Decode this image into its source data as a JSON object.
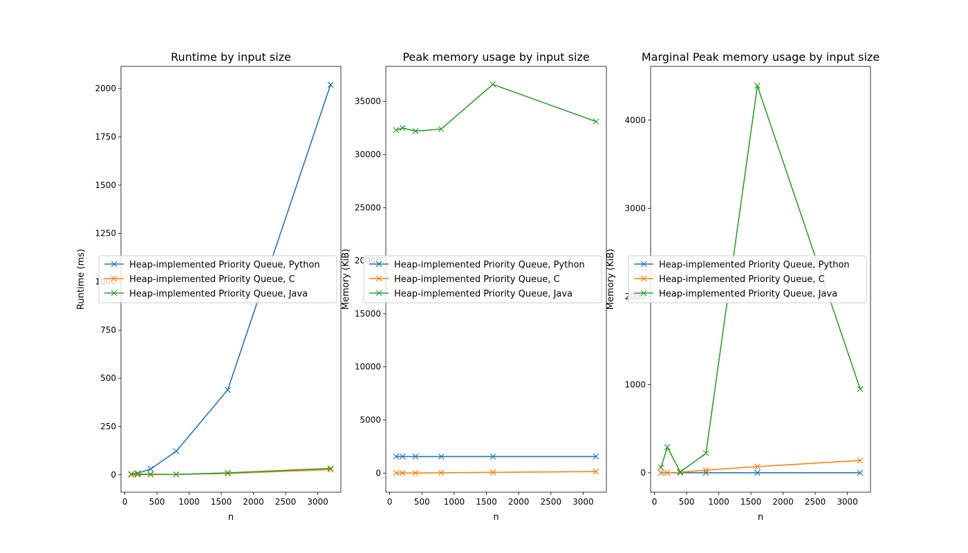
{
  "chart_data": [
    {
      "type": "line",
      "title": "Runtime by input size",
      "xlabel": "n",
      "ylabel": "Runtime (ms)",
      "xlim": [
        -60,
        3360
      ],
      "ylim": [
        -90,
        2115
      ],
      "xticks": [
        0,
        500,
        1000,
        1500,
        2000,
        2500,
        3000
      ],
      "yticks": [
        0,
        250,
        500,
        750,
        1000,
        1250,
        1500,
        1750,
        2000
      ],
      "x": [
        100,
        200,
        400,
        800,
        1600,
        3200
      ],
      "legend": "center-left",
      "grid": false,
      "series": [
        {
          "name": "Heap-implemented Priority Queue, Python",
          "color": "#1f77b4",
          "values": [
            2,
            8,
            30,
            122,
            440,
            2020
          ]
        },
        {
          "name": "Heap-implemented Priority Queue, C",
          "color": "#ff7f0e",
          "values": [
            0.3,
            0.5,
            1,
            2,
            7,
            27
          ]
        },
        {
          "name": "Heap-implemented Priority Queue, Java",
          "color": "#2ca02c",
          "values": [
            4,
            5,
            3,
            2,
            10,
            33
          ]
        }
      ]
    },
    {
      "type": "line",
      "title": "Peak memory usage by input size",
      "xlabel": "n",
      "ylabel": "Memory (KiB)",
      "xlim": [
        -60,
        3360
      ],
      "ylim": [
        -1800,
        38300
      ],
      "xticks": [
        0,
        500,
        1000,
        1500,
        2000,
        2500,
        3000
      ],
      "yticks": [
        0,
        5000,
        10000,
        15000,
        20000,
        25000,
        30000,
        35000
      ],
      "x": [
        100,
        200,
        400,
        800,
        1600,
        3200
      ],
      "legend": "center-left",
      "grid": false,
      "series": [
        {
          "name": "Heap-implemented Priority Queue, Python",
          "color": "#1f77b4",
          "values": [
            1560,
            1560,
            1560,
            1560,
            1560,
            1560
          ]
        },
        {
          "name": "Heap-implemented Priority Queue, C",
          "color": "#ff7f0e",
          "values": [
            0,
            0,
            0,
            30,
            70,
            140
          ]
        },
        {
          "name": "Heap-implemented Priority Queue, Java",
          "color": "#2ca02c",
          "values": [
            32300,
            32500,
            32200,
            32400,
            36600,
            33100
          ]
        }
      ]
    },
    {
      "type": "line",
      "title": "Marginal Peak memory usage by input size",
      "xlabel": "n",
      "ylabel": "Memory (KiB)",
      "xlim": [
        -60,
        3360
      ],
      "ylim": [
        -220,
        4610
      ],
      "xticks": [
        0,
        500,
        1000,
        1500,
        2000,
        2500,
        3000
      ],
      "yticks": [
        0,
        1000,
        2000,
        3000,
        4000
      ],
      "x": [
        100,
        200,
        400,
        800,
        1600,
        3200
      ],
      "legend": "center-left",
      "grid": false,
      "series": [
        {
          "name": "Heap-implemented Priority Queue, Python",
          "color": "#1f77b4",
          "values": [
            0,
            0,
            0,
            0,
            0,
            0
          ]
        },
        {
          "name": "Heap-implemented Priority Queue, C",
          "color": "#ff7f0e",
          "values": [
            0,
            0,
            5,
            30,
            70,
            140
          ]
        },
        {
          "name": "Heap-implemented Priority Queue, Java",
          "color": "#2ca02c",
          "values": [
            60,
            290,
            10,
            220,
            4390,
            950
          ]
        }
      ]
    }
  ]
}
